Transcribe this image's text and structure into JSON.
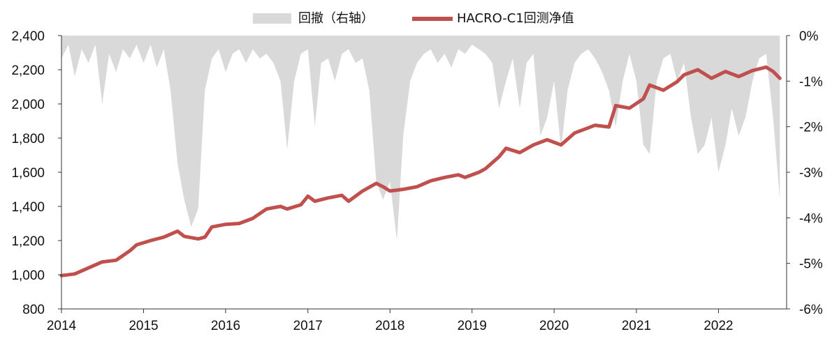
{
  "chart_data": {
    "type": "line",
    "title": "",
    "xlabel": "",
    "ylabel": "",
    "legend_position": "top-center",
    "x_ticks": [
      "2014",
      "2015",
      "2016",
      "2017",
      "2018",
      "2019",
      "2020",
      "2021",
      "2022"
    ],
    "x_range": [
      "2014-01-01",
      "2022-10-31"
    ],
    "y_left": {
      "range": [
        800,
        2400
      ],
      "ticks": [
        "800",
        "1,000",
        "1,200",
        "1,400",
        "1,600",
        "1,800",
        "2,000",
        "2,200",
        "2,400"
      ]
    },
    "y_right": {
      "range": [
        -6,
        0
      ],
      "unit": "%",
      "ticks": [
        "0%",
        "-1%",
        "-2%",
        "-3%",
        "-4%",
        "-5%",
        "-6%"
      ]
    },
    "series": [
      {
        "name": "回撤（右轴）",
        "type": "area",
        "axis": "right",
        "color": "#d9d9d9",
        "points": [
          [
            "2014-01",
            "-0.5"
          ],
          [
            "2014-02",
            "-0.2"
          ],
          [
            "2014-03",
            "-0.9"
          ],
          [
            "2014-04",
            "-0.3"
          ],
          [
            "2014-05",
            "-0.6"
          ],
          [
            "2014-06",
            "-0.2"
          ],
          [
            "2014-07",
            "-1.5"
          ],
          [
            "2014-08",
            "-0.4"
          ],
          [
            "2014-09",
            "-0.8"
          ],
          [
            "2014-10",
            "-0.3"
          ],
          [
            "2014-11",
            "-0.5"
          ],
          [
            "2014-12",
            "-0.2"
          ],
          [
            "2015-01",
            "-0.6"
          ],
          [
            "2015-02",
            "-0.2"
          ],
          [
            "2015-03",
            "-0.7"
          ],
          [
            "2015-04",
            "-0.3"
          ],
          [
            "2015-05",
            "-1.2"
          ],
          [
            "2015-06",
            "-2.8"
          ],
          [
            "2015-07",
            "-3.6"
          ],
          [
            "2015-08",
            "-4.2"
          ],
          [
            "2015-09",
            "-3.8"
          ],
          [
            "2015-10",
            "-1.2"
          ],
          [
            "2015-11",
            "-0.5"
          ],
          [
            "2015-12",
            "-0.3"
          ],
          [
            "2016-01",
            "-0.8"
          ],
          [
            "2016-02",
            "-0.4"
          ],
          [
            "2016-03",
            "-0.3"
          ],
          [
            "2016-04",
            "-0.6"
          ],
          [
            "2016-05",
            "-0.3"
          ],
          [
            "2016-06",
            "-0.5"
          ],
          [
            "2016-07",
            "-0.4"
          ],
          [
            "2016-08",
            "-0.6"
          ],
          [
            "2016-09",
            "-1.0"
          ],
          [
            "2016-10",
            "-2.5"
          ],
          [
            "2016-11",
            "-1.0"
          ],
          [
            "2016-12",
            "-0.4"
          ],
          [
            "2017-01",
            "-0.3"
          ],
          [
            "2017-02",
            "-2.0"
          ],
          [
            "2017-03",
            "-0.6"
          ],
          [
            "2017-04",
            "-0.5"
          ],
          [
            "2017-05",
            "-1.0"
          ],
          [
            "2017-06",
            "-0.4"
          ],
          [
            "2017-07",
            "-0.3"
          ],
          [
            "2017-08",
            "-0.6"
          ],
          [
            "2017-09",
            "-0.5"
          ],
          [
            "2017-10",
            "-1.2"
          ],
          [
            "2017-11",
            "-3.2"
          ],
          [
            "2017-12",
            "-3.6"
          ],
          [
            "2018-01",
            "-3.2"
          ],
          [
            "2018-02",
            "-4.5"
          ],
          [
            "2018-03",
            "-2.2"
          ],
          [
            "2018-04",
            "-1.0"
          ],
          [
            "2018-05",
            "-0.6"
          ],
          [
            "2018-06",
            "-0.4"
          ],
          [
            "2018-07",
            "-0.3"
          ],
          [
            "2018-08",
            "-0.6"
          ],
          [
            "2018-09",
            "-0.4"
          ],
          [
            "2018-10",
            "-0.7"
          ],
          [
            "2018-11",
            "-0.3"
          ],
          [
            "2018-12",
            "-0.4"
          ],
          [
            "2019-01",
            "-0.2"
          ],
          [
            "2019-02",
            "-0.3"
          ],
          [
            "2019-03",
            "-0.4"
          ],
          [
            "2019-04",
            "-0.6"
          ],
          [
            "2019-05",
            "-1.6"
          ],
          [
            "2019-06",
            "-1.0"
          ],
          [
            "2019-07",
            "-0.5"
          ],
          [
            "2019-08",
            "-1.6"
          ],
          [
            "2019-09",
            "-0.6"
          ],
          [
            "2019-10",
            "-0.4"
          ],
          [
            "2019-11",
            "-2.2"
          ],
          [
            "2019-12",
            "-1.8"
          ],
          [
            "2020-01",
            "-1.0"
          ],
          [
            "2020-02",
            "-2.5"
          ],
          [
            "2020-03",
            "-1.2"
          ],
          [
            "2020-04",
            "-0.6"
          ],
          [
            "2020-05",
            "-0.4"
          ],
          [
            "2020-06",
            "-0.3"
          ],
          [
            "2020-07",
            "-0.5"
          ],
          [
            "2020-08",
            "-0.8"
          ],
          [
            "2020-09",
            "-1.2"
          ],
          [
            "2020-10",
            "-2.0"
          ],
          [
            "2020-11",
            "-1.0"
          ],
          [
            "2020-12",
            "-0.4"
          ],
          [
            "2021-01",
            "-1.0"
          ],
          [
            "2021-02",
            "-2.4"
          ],
          [
            "2021-03",
            "-2.6"
          ],
          [
            "2021-04",
            "-1.0"
          ],
          [
            "2021-05",
            "-0.5"
          ],
          [
            "2021-06",
            "-0.4"
          ],
          [
            "2021-07",
            "-1.0"
          ],
          [
            "2021-08",
            "-0.6"
          ],
          [
            "2021-09",
            "-1.8"
          ],
          [
            "2021-10",
            "-2.6"
          ],
          [
            "2021-11",
            "-2.4"
          ],
          [
            "2021-12",
            "-1.8"
          ],
          [
            "2022-01",
            "-3.0"
          ],
          [
            "2022-02",
            "-2.4"
          ],
          [
            "2022-03",
            "-1.6"
          ],
          [
            "2022-04",
            "-2.2"
          ],
          [
            "2022-05",
            "-1.8"
          ],
          [
            "2022-06",
            "-1.0"
          ],
          [
            "2022-07",
            "-0.5"
          ],
          [
            "2022-08",
            "-0.4"
          ],
          [
            "2022-09",
            "-1.8"
          ],
          [
            "2022-10",
            "-3.6"
          ]
        ]
      },
      {
        "name": "HACRO-C1回测净值",
        "type": "line",
        "axis": "left",
        "color": "#c0504d",
        "points": [
          [
            "2014-01",
            "995"
          ],
          [
            "2014-03",
            "1005"
          ],
          [
            "2014-05",
            "1040"
          ],
          [
            "2014-07",
            "1075"
          ],
          [
            "2014-09",
            "1085"
          ],
          [
            "2014-11",
            "1140"
          ],
          [
            "2014-12",
            "1175"
          ],
          [
            "2015-02",
            "1200"
          ],
          [
            "2015-04",
            "1220"
          ],
          [
            "2015-06",
            "1255"
          ],
          [
            "2015-07",
            "1225"
          ],
          [
            "2015-09",
            "1210"
          ],
          [
            "2015-10",
            "1220"
          ],
          [
            "2015-11",
            "1280"
          ],
          [
            "2016-01",
            "1295"
          ],
          [
            "2016-03",
            "1300"
          ],
          [
            "2016-05",
            "1330"
          ],
          [
            "2016-07",
            "1385"
          ],
          [
            "2016-09",
            "1400"
          ],
          [
            "2016-10",
            "1385"
          ],
          [
            "2016-12",
            "1410"
          ],
          [
            "2017-01",
            "1460"
          ],
          [
            "2017-02",
            "1430"
          ],
          [
            "2017-04",
            "1450"
          ],
          [
            "2017-06",
            "1465"
          ],
          [
            "2017-07",
            "1430"
          ],
          [
            "2017-09",
            "1490"
          ],
          [
            "2017-11",
            "1535"
          ],
          [
            "2017-12",
            "1515"
          ],
          [
            "2018-01",
            "1490"
          ],
          [
            "2018-03",
            "1500"
          ],
          [
            "2018-05",
            "1515"
          ],
          [
            "2018-07",
            "1550"
          ],
          [
            "2018-09",
            "1570"
          ],
          [
            "2018-11",
            "1585"
          ],
          [
            "2018-12",
            "1570"
          ],
          [
            "2019-02",
            "1600"
          ],
          [
            "2019-03",
            "1620"
          ],
          [
            "2019-05",
            "1690"
          ],
          [
            "2019-06",
            "1740"
          ],
          [
            "2019-08",
            "1715"
          ],
          [
            "2019-10",
            "1760"
          ],
          [
            "2019-12",
            "1790"
          ],
          [
            "2020-02",
            "1760"
          ],
          [
            "2020-04",
            "1830"
          ],
          [
            "2020-06",
            "1860"
          ],
          [
            "2020-07",
            "1875"
          ],
          [
            "2020-09",
            "1865"
          ],
          [
            "2020-10",
            "1990"
          ],
          [
            "2020-12",
            "1975"
          ],
          [
            "2021-02",
            "2030"
          ],
          [
            "2021-03",
            "2110"
          ],
          [
            "2021-05",
            "2080"
          ],
          [
            "2021-07",
            "2130"
          ],
          [
            "2021-08",
            "2170"
          ],
          [
            "2021-10",
            "2200"
          ],
          [
            "2021-12",
            "2150"
          ],
          [
            "2022-02",
            "2190"
          ],
          [
            "2022-04",
            "2160"
          ],
          [
            "2022-06",
            "2195"
          ],
          [
            "2022-08",
            "2215"
          ],
          [
            "2022-09",
            "2190"
          ],
          [
            "2022-10",
            "2150"
          ]
        ]
      }
    ]
  }
}
